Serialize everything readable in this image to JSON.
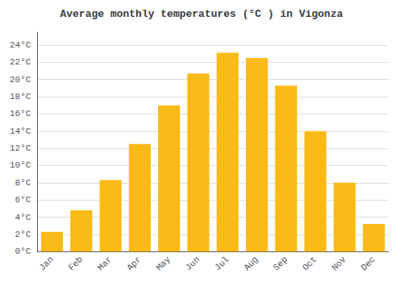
{
  "chart_data": {
    "type": "bar",
    "title": "Average monthly temperatures (°C ) in Vigonza",
    "categories": [
      "Jan",
      "Feb",
      "Mar",
      "Apr",
      "May",
      "Jun",
      "Jul",
      "Aug",
      "Sep",
      "Oct",
      "Nov",
      "Dec"
    ],
    "values": [
      2.3,
      4.8,
      8.3,
      12.5,
      17.0,
      20.7,
      23.1,
      22.5,
      19.3,
      14.0,
      8.0,
      3.2
    ],
    "color": "#FBBA16",
    "ylim": [
      0,
      25.5
    ],
    "yticks": [
      {
        "value": 0,
        "label": "0°C"
      },
      {
        "value": 2,
        "label": "2°C"
      },
      {
        "value": 4,
        "label": "4°C"
      },
      {
        "value": 6,
        "label": "6°C"
      },
      {
        "value": 8,
        "label": "8°C"
      },
      {
        "value": 10,
        "label": "10°C"
      },
      {
        "value": 12,
        "label": "12°C"
      },
      {
        "value": 14,
        "label": "14°C"
      },
      {
        "value": 16,
        "label": "16°C"
      },
      {
        "value": 18,
        "label": "18°C"
      },
      {
        "value": 20,
        "label": "20°C"
      },
      {
        "value": 22,
        "label": "22°C"
      },
      {
        "value": 24,
        "label": "24°C"
      }
    ],
    "grid": true
  }
}
